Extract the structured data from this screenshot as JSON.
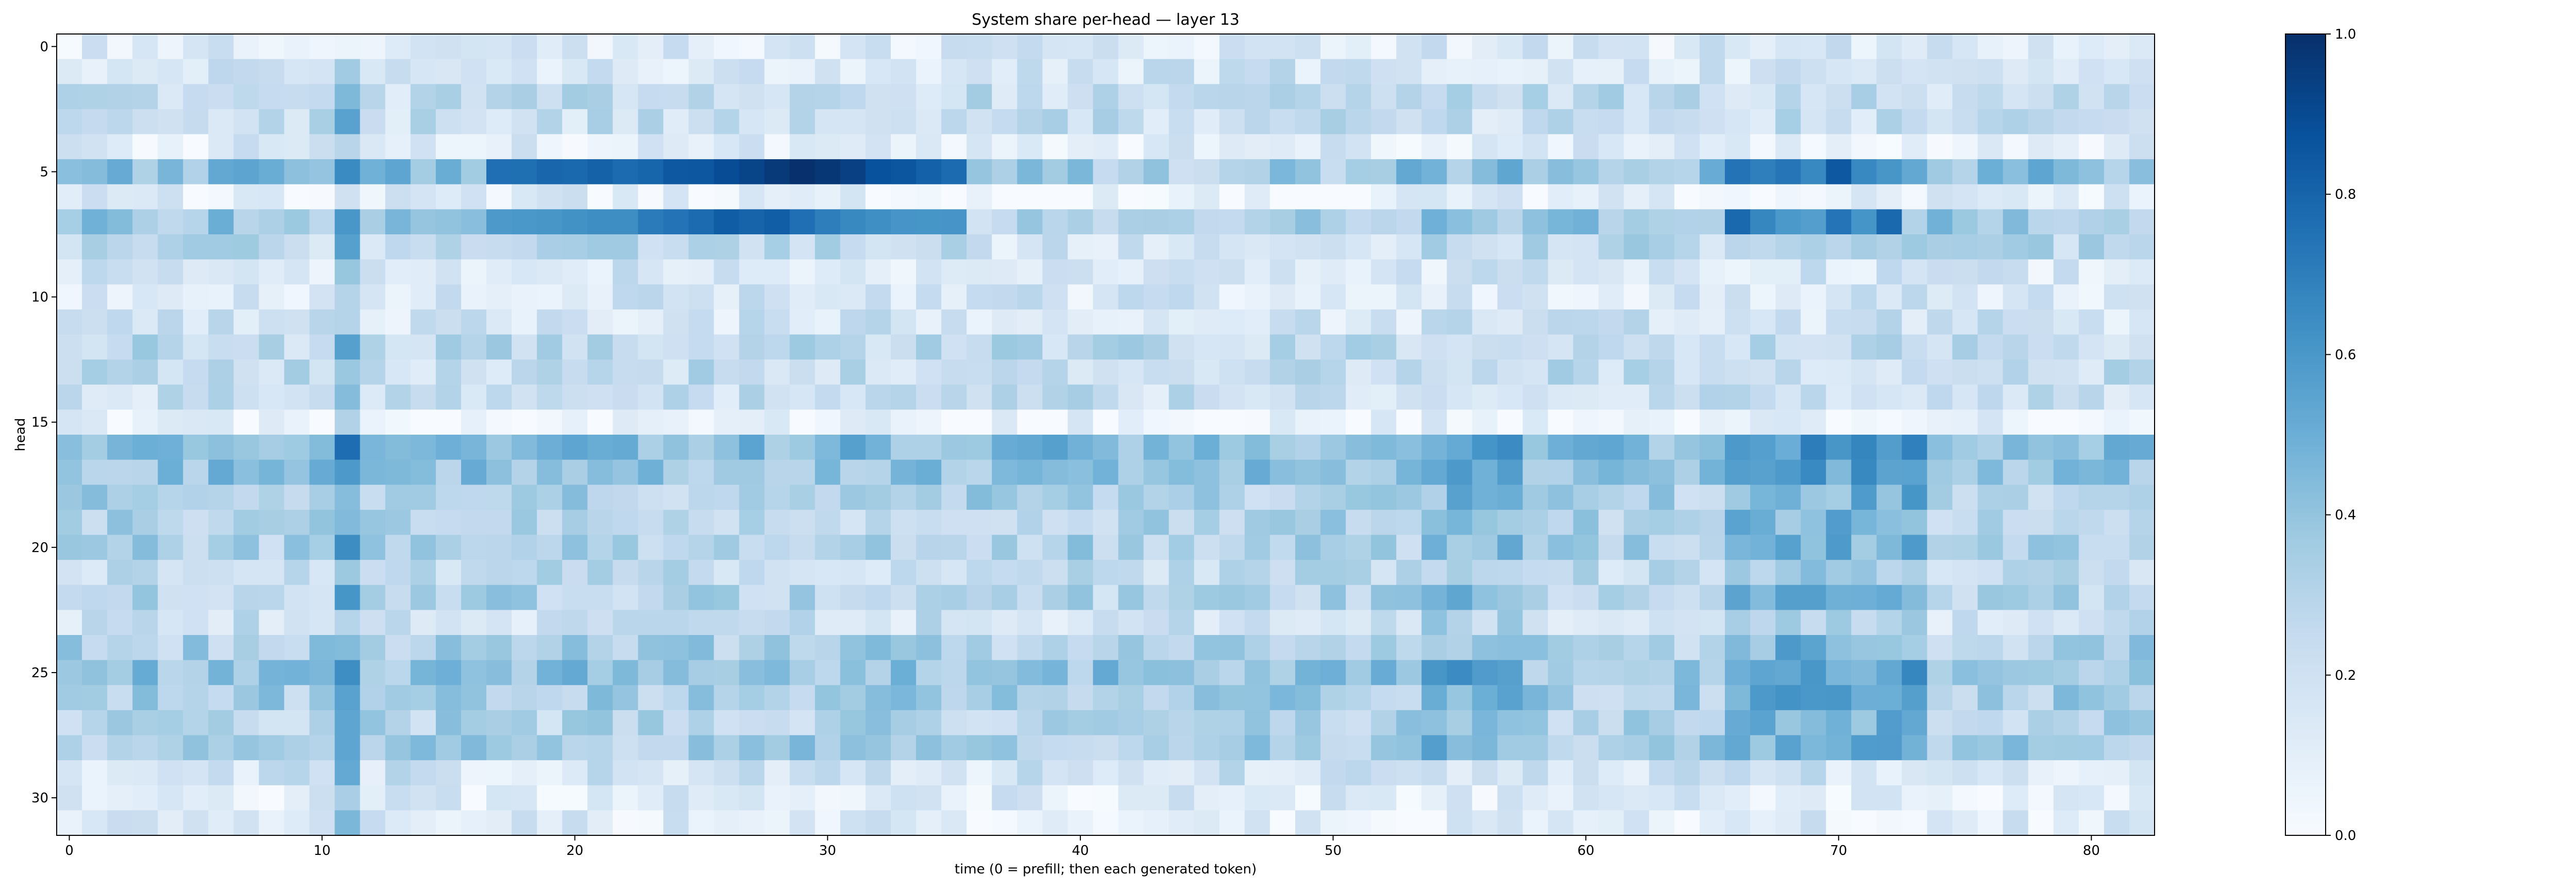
{
  "chart_data": {
    "type": "heatmap",
    "title": "System share per-head — layer 13",
    "xlabel": "time (0 = prefill; then each generated token)",
    "ylabel": "head",
    "x_range": [
      0,
      82
    ],
    "y_range": [
      0,
      31
    ],
    "x_ticks": [
      0,
      10,
      20,
      30,
      40,
      50,
      60,
      70,
      80
    ],
    "y_ticks": [
      0,
      5,
      10,
      15,
      20,
      25,
      30
    ],
    "colorbar": {
      "cmap": "Blues",
      "vmin": 0.0,
      "vmax": 1.0,
      "ticks": [
        "0.0",
        "0.2",
        "0.4",
        "0.6",
        "0.8",
        "1.0"
      ],
      "colors": [
        "#f7fbff",
        "#deebf7",
        "#c6dbef",
        "#9ecae1",
        "#6baed6",
        "#4292c6",
        "#2171b5",
        "#08519c",
        "#08306b"
      ]
    },
    "grid": false,
    "rows": 32,
    "cols": 83,
    "notes": "Values estimated row-by-row from the image (head index = row, token index = column)."
  }
}
